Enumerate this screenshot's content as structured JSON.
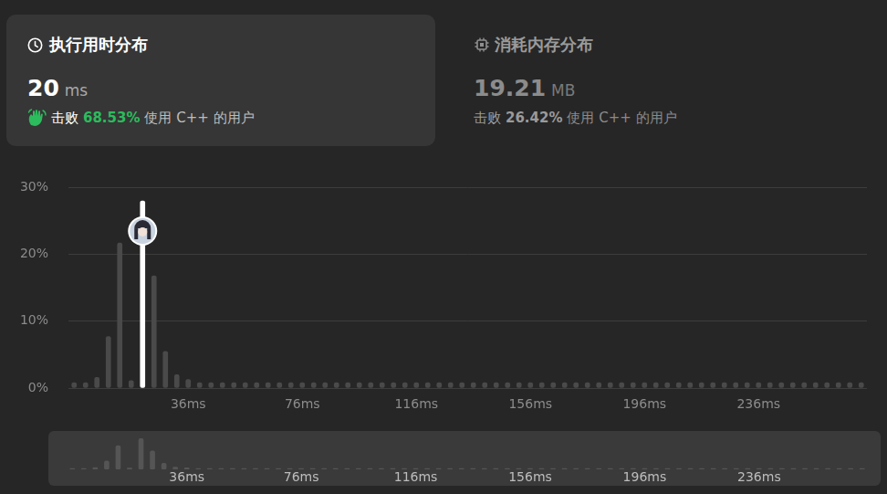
{
  "header": {
    "runtime": {
      "title": "执行用时分布",
      "value": "20",
      "unit": "ms",
      "beat_prefix": "击败",
      "beat": "68.53%",
      "beat_suffix": "使用 C++ 的用户"
    },
    "memory": {
      "title": "消耗内存分布",
      "value": "19.21",
      "unit": "MB",
      "beat_prefix": "击败",
      "beat": "26.42%",
      "beat_suffix": "使用 C++ 的用户"
    }
  },
  "chart_data": [
    {
      "type": "bar",
      "categories": [
        null,
        null,
        null,
        null,
        null,
        null,
        null,
        null,
        null,
        null,
        "36ms",
        null,
        null,
        null,
        null,
        null,
        null,
        null,
        null,
        null,
        "76ms",
        null,
        null,
        null,
        null,
        null,
        null,
        null,
        null,
        null,
        "116ms",
        null,
        null,
        null,
        null,
        null,
        null,
        null,
        null,
        null,
        "156ms",
        null,
        null,
        null,
        null,
        null,
        null,
        null,
        null,
        null,
        "196ms",
        null,
        null,
        null,
        null,
        null,
        null,
        null,
        null,
        null,
        "236ms",
        null,
        null,
        null,
        null,
        null,
        null,
        null,
        null,
        null
      ],
      "values": [
        0.8,
        0.8,
        1.6,
        7.7,
        21.7,
        1.1,
        28,
        16.8,
        5.5,
        2.0,
        1.3,
        0.8,
        0.8,
        0.8,
        0.8,
        0.8,
        0.8,
        0.8,
        0.8,
        0.8,
        0.8,
        0.8,
        0.8,
        0.8,
        0.8,
        0.8,
        0.8,
        0.8,
        0.8,
        0.8,
        0.8,
        0.8,
        0.8,
        0.8,
        0.8,
        0.8,
        0.8,
        0.8,
        0.8,
        0.8,
        0.8,
        0.8,
        0.8,
        0.8,
        0.8,
        0.8,
        0.8,
        0.8,
        0.8,
        0.8,
        0.8,
        0.8,
        0.8,
        0.8,
        0.8,
        0.8,
        0.8,
        0.8,
        0.8,
        0.8,
        0.8,
        0.8,
        0.8,
        0.8,
        0.8,
        0.8,
        0.8,
        0.8,
        0.8,
        0.8
      ],
      "colors": [
        "#4a4a4a",
        "#4a4a4a",
        "#4a4a4a",
        "#4a4a4a",
        "#4a4a4a",
        "#4a4a4a",
        "#ffffff",
        "#4a4a4a",
        "#4a4a4a",
        "#4a4a4a",
        "#4a4a4a",
        "#4a4a4a",
        "#4a4a4a",
        "#4a4a4a",
        "#4a4a4a",
        "#4a4a4a",
        "#4a4a4a",
        "#4a4a4a",
        "#4a4a4a",
        "#4a4a4a",
        "#4a4a4a",
        "#4a4a4a",
        "#4a4a4a",
        "#4a4a4a",
        "#4a4a4a",
        "#4a4a4a",
        "#4a4a4a",
        "#4a4a4a",
        "#4a4a4a",
        "#4a4a4a",
        "#4a4a4a",
        "#4a4a4a",
        "#4a4a4a",
        "#4a4a4a",
        "#4a4a4a",
        "#4a4a4a",
        "#4a4a4a",
        "#4a4a4a",
        "#4a4a4a",
        "#4a4a4a",
        "#4a4a4a",
        "#4a4a4a",
        "#4a4a4a",
        "#4a4a4a",
        "#4a4a4a",
        "#4a4a4a",
        "#4a4a4a",
        "#4a4a4a",
        "#4a4a4a",
        "#4a4a4a",
        "#4a4a4a",
        "#4a4a4a",
        "#4a4a4a",
        "#4a4a4a",
        "#4a4a4a",
        "#4a4a4a",
        "#4a4a4a",
        "#4a4a4a",
        "#4a4a4a",
        "#4a4a4a",
        "#4a4a4a",
        "#4a4a4a",
        "#4a4a4a",
        "#4a4a4a",
        "#4a4a4a",
        "#4a4a4a",
        "#4a4a4a",
        "#4a4a4a",
        "#4a4a4a",
        "#4a4a4a"
      ],
      "ylim": [
        0,
        30
      ],
      "yticks": [
        {
          "value": 0,
          "label": "0%"
        },
        {
          "value": 10,
          "label": "10%"
        },
        {
          "value": 20,
          "label": "20%"
        },
        {
          "value": 30,
          "label": "30%"
        }
      ],
      "grid": true
    },
    {
      "type": "bar",
      "categories": [
        null,
        null,
        null,
        null,
        null,
        null,
        null,
        null,
        null,
        null,
        "36ms",
        null,
        null,
        null,
        null,
        null,
        null,
        null,
        null,
        null,
        "76ms",
        null,
        null,
        null,
        null,
        null,
        null,
        null,
        null,
        null,
        "116ms",
        null,
        null,
        null,
        null,
        null,
        null,
        null,
        null,
        null,
        "156ms",
        null,
        null,
        null,
        null,
        null,
        null,
        null,
        null,
        null,
        "196ms",
        null,
        null,
        null,
        null,
        null,
        null,
        null,
        null,
        null,
        "236ms",
        null,
        null,
        null,
        null,
        null,
        null,
        null,
        null,
        null
      ],
      "values": [
        0.8,
        0.8,
        1.6,
        7.7,
        21.7,
        1.1,
        28,
        16.8,
        5.5,
        2.0,
        1.3,
        0.8,
        0.8,
        0.8,
        0.8,
        0.8,
        0.8,
        0.8,
        0.8,
        0.8,
        0.8,
        0.8,
        0.8,
        0.8,
        0.8,
        0.8,
        0.8,
        0.8,
        0.8,
        0.8,
        0.8,
        0.8,
        0.8,
        0.8,
        0.8,
        0.8,
        0.8,
        0.8,
        0.8,
        0.8,
        0.8,
        0.8,
        0.8,
        0.8,
        0.8,
        0.8,
        0.8,
        0.8,
        0.8,
        0.8,
        0.8,
        0.8,
        0.8,
        0.8,
        0.8,
        0.8,
        0.8,
        0.8,
        0.8,
        0.8,
        0.8,
        0.8,
        0.8,
        0.8,
        0.8,
        0.8,
        0.8,
        0.8,
        0.8,
        0.8
      ],
      "color": "#555555",
      "ylim": [
        0,
        30
      ],
      "grid": false,
      "tick_labels": "x"
    }
  ]
}
